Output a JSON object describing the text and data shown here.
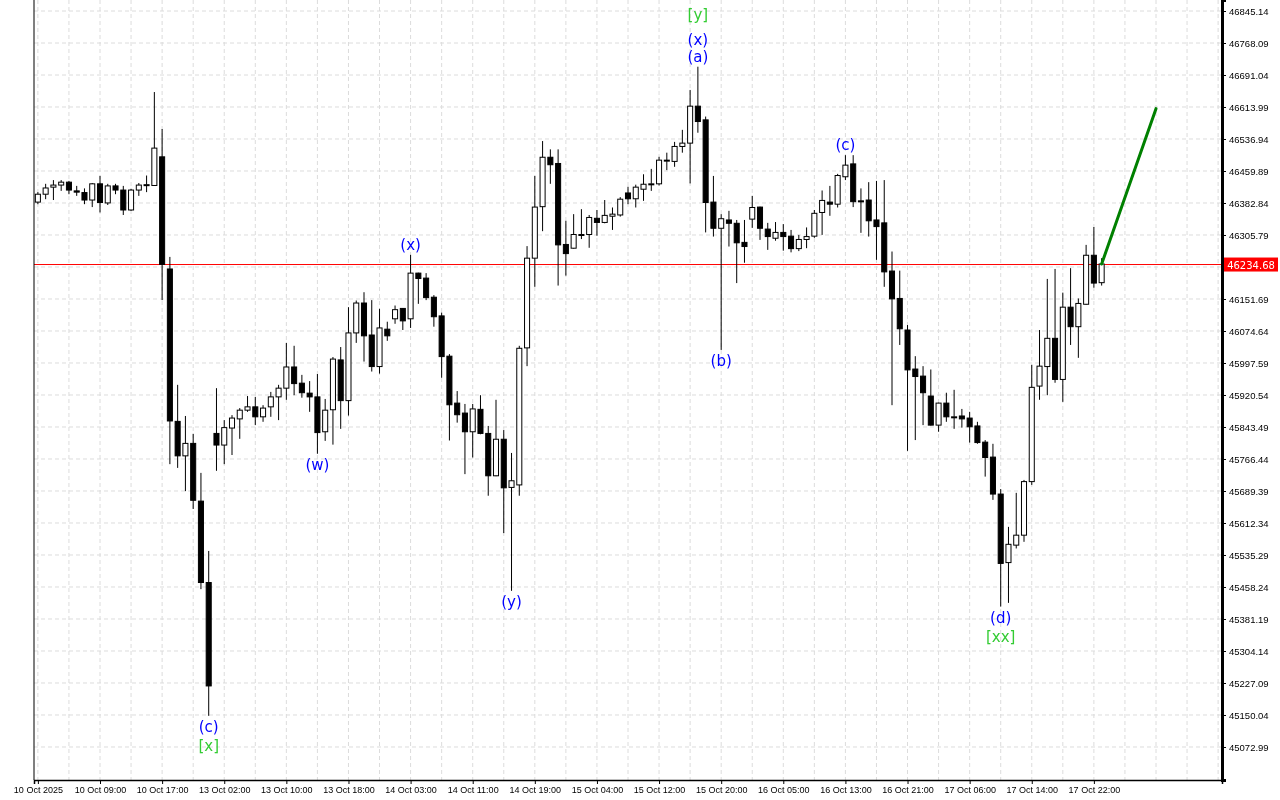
{
  "chart_data": {
    "type": "candlestick",
    "categories": [
      "10 Oct 2025",
      null,
      null,
      null,
      null,
      null,
      null,
      null,
      "10 Oct 09:00",
      null,
      null,
      null,
      null,
      null,
      null,
      null,
      "10 Oct 17:00",
      null,
      null,
      null,
      null,
      null,
      null,
      null,
      "13 Oct 02:00",
      null,
      null,
      null,
      null,
      null,
      null,
      null,
      "13 Oct 10:00",
      null,
      null,
      null,
      null,
      null,
      null,
      null,
      "13 Oct 18:00",
      null,
      null,
      null,
      null,
      null,
      null,
      null,
      "14 Oct 03:00",
      null,
      null,
      null,
      null,
      null,
      null,
      null,
      "14 Oct 11:00",
      null,
      null,
      null,
      null,
      null,
      null,
      null,
      "14 Oct 19:00",
      null,
      null,
      null,
      null,
      null,
      null,
      null,
      "15 Oct 04:00",
      null,
      null,
      null,
      null,
      null,
      null,
      null,
      "15 Oct 12:00",
      null,
      null,
      null,
      null,
      null,
      null,
      null,
      "15 Oct 20:00",
      null,
      null,
      null,
      null,
      null,
      null,
      null,
      "16 Oct 05:00",
      null,
      null,
      null,
      null,
      null,
      null,
      null,
      "16 Oct 13:00",
      null,
      null,
      null,
      null,
      null,
      null,
      null,
      "16 Oct 21:00",
      null,
      null,
      null,
      null,
      null,
      null,
      null,
      "17 Oct 06:00",
      null,
      null,
      null,
      null,
      null,
      null,
      null,
      "17 Oct 14:00",
      null,
      null,
      null,
      null,
      null,
      null,
      null,
      "17 Oct 22:00",
      null,
      null,
      null,
      null,
      null,
      null,
      null,
      null,
      null,
      null,
      null,
      null,
      null,
      null,
      null,
      null
    ],
    "ohlc": [
      [
        46385,
        46409,
        46380,
        46404
      ],
      [
        46404,
        46429,
        46392,
        46419
      ],
      [
        46421,
        46438,
        46390,
        46426
      ],
      [
        46426,
        46438,
        46412,
        46433
      ],
      [
        46433,
        46436,
        46404,
        46414
      ],
      [
        46412,
        46424,
        46400,
        46409
      ],
      [
        46408,
        46418,
        46380,
        46390
      ],
      [
        46390,
        46431,
        46373,
        46429
      ],
      [
        46429,
        46448,
        46360,
        46384
      ],
      [
        46383,
        46429,
        46378,
        46424
      ],
      [
        46424,
        46429,
        46404,
        46414
      ],
      [
        46414,
        46424,
        46354,
        46366
      ],
      [
        46366,
        46417,
        46364,
        46414
      ],
      [
        46414,
        46431,
        46400,
        46426
      ],
      [
        46426,
        46449,
        46409,
        46427
      ],
      [
        46425,
        46650,
        46424,
        46515
      ],
      [
        46494,
        46561,
        46149,
        46235
      ],
      [
        46224,
        46253,
        45754,
        45858
      ],
      [
        45857,
        45945,
        45745,
        45774
      ],
      [
        45774,
        45870,
        45689,
        45804
      ],
      [
        45804,
        45827,
        45646,
        45667
      ],
      [
        45665,
        45733,
        45453,
        45469
      ],
      [
        45469,
        45545,
        45148,
        45220
      ],
      [
        45828,
        45937,
        45738,
        45800
      ],
      [
        45800,
        45860,
        45754,
        45842
      ],
      [
        45841,
        45872,
        45776,
        45865
      ],
      [
        45863,
        45889,
        45815,
        45884
      ],
      [
        45884,
        45918,
        45880,
        45892
      ],
      [
        45892,
        45916,
        45848,
        45868
      ],
      [
        45868,
        45896,
        45856,
        45889
      ],
      [
        45892,
        45928,
        45868,
        45916
      ],
      [
        45916,
        45945,
        45860,
        45937
      ],
      [
        45937,
        46046,
        45909,
        45988
      ],
      [
        45988,
        46039,
        45920,
        45948
      ],
      [
        45949,
        45969,
        45914,
        45926
      ],
      [
        45925,
        45954,
        45880,
        45916
      ],
      [
        45916,
        45971,
        45779,
        45830
      ],
      [
        45832,
        45911,
        45810,
        45884
      ],
      [
        45885,
        46012,
        45801,
        46007
      ],
      [
        46005,
        46036,
        45839,
        45907
      ],
      [
        45907,
        46132,
        45871,
        46070
      ],
      [
        46070,
        46148,
        46046,
        46142
      ],
      [
        46142,
        46168,
        46001,
        46063
      ],
      [
        46065,
        46149,
        45977,
        45989
      ],
      [
        45989,
        46128,
        45972,
        46082
      ],
      [
        46079,
        46097,
        46051,
        46063
      ],
      [
        46104,
        46136,
        46092,
        46126
      ],
      [
        46129,
        46130,
        46077,
        46099
      ],
      [
        46104,
        46258,
        46082,
        46214
      ],
      [
        46214,
        46215,
        46140,
        46201
      ],
      [
        46202,
        46214,
        46149,
        46155
      ],
      [
        46156,
        46161,
        46085,
        46109
      ],
      [
        46111,
        46119,
        45962,
        46013
      ],
      [
        46014,
        46019,
        45811,
        45897
      ],
      [
        45901,
        45930,
        45854,
        45873
      ],
      [
        45877,
        45899,
        45730,
        45832
      ],
      [
        45832,
        45899,
        45770,
        45887
      ],
      [
        45886,
        45920,
        45826,
        45828
      ],
      [
        45828,
        45846,
        45678,
        45726
      ],
      [
        45726,
        45909,
        45725,
        45814
      ],
      [
        45814,
        45836,
        45588,
        45697
      ],
      [
        45698,
        45781,
        45449,
        45714
      ],
      [
        45704,
        46039,
        45678,
        46033
      ],
      [
        46034,
        46279,
        45990,
        46250
      ],
      [
        46250,
        46448,
        46181,
        46373
      ],
      [
        46374,
        46532,
        46315,
        46493
      ],
      [
        46493,
        46512,
        46429,
        46475
      ],
      [
        46478,
        46512,
        46184,
        46282
      ],
      [
        46283,
        46340,
        46208,
        46261
      ],
      [
        46274,
        46356,
        46273,
        46307
      ],
      [
        46307,
        46368,
        46296,
        46306
      ],
      [
        46307,
        46354,
        46275,
        46348
      ],
      [
        46346,
        46366,
        46304,
        46336
      ],
      [
        46336,
        46390,
        46334,
        46353
      ],
      [
        46351,
        46372,
        46318,
        46356
      ],
      [
        46354,
        46397,
        46350,
        46392
      ],
      [
        46407,
        46422,
        46380,
        46393
      ],
      [
        46393,
        46427,
        46372,
        46421
      ],
      [
        46416,
        46452,
        46388,
        46428
      ],
      [
        46428,
        46465,
        46412,
        46429
      ],
      [
        46429,
        46494,
        46425,
        46486
      ],
      [
        46485,
        46504,
        46462,
        46486
      ],
      [
        46483,
        46530,
        46470,
        46519
      ],
      [
        46519,
        46559,
        46504,
        46527
      ],
      [
        46527,
        46655,
        46430,
        46616
      ],
      [
        46616,
        46711,
        46552,
        46579
      ],
      [
        46583,
        46591,
        46312,
        46384
      ],
      [
        46385,
        46448,
        46302,
        46322
      ],
      [
        46322,
        46356,
        46029,
        46345
      ],
      [
        46342,
        46364,
        46278,
        46334
      ],
      [
        46334,
        46342,
        46190,
        46287
      ],
      [
        46288,
        46342,
        46239,
        46278
      ],
      [
        46344,
        46400,
        46323,
        46372
      ],
      [
        46373,
        46374,
        46294,
        46322
      ],
      [
        46320,
        46335,
        46270,
        46302
      ],
      [
        46298,
        46337,
        46292,
        46312
      ],
      [
        46312,
        46332,
        46268,
        46302
      ],
      [
        46303,
        46318,
        46264,
        46273
      ],
      [
        46273,
        46306,
        46267,
        46295
      ],
      [
        46295,
        46324,
        46274,
        46302
      ],
      [
        46303,
        46366,
        46299,
        46358
      ],
      [
        46360,
        46413,
        46306,
        46389
      ],
      [
        46385,
        46424,
        46352,
        46380
      ],
      [
        46380,
        46453,
        46372,
        46449
      ],
      [
        46446,
        46498,
        46438,
        46474
      ],
      [
        46477,
        46498,
        46373,
        46386
      ],
      [
        46388,
        46418,
        46311,
        46387
      ],
      [
        46390,
        46433,
        46302,
        46340
      ],
      [
        46342,
        46436,
        46246,
        46326
      ],
      [
        46335,
        46438,
        46181,
        46217
      ],
      [
        46219,
        46266,
        45896,
        46152
      ],
      [
        46153,
        46220,
        46041,
        46080
      ],
      [
        46077,
        46089,
        45786,
        45981
      ],
      [
        45983,
        46014,
        45812,
        45965
      ],
      [
        45966,
        45990,
        45848,
        45926
      ],
      [
        45918,
        45982,
        45847,
        45848
      ],
      [
        45848,
        45902,
        45832,
        45901
      ],
      [
        45901,
        45926,
        45856,
        45868
      ],
      [
        45868,
        45933,
        45839,
        45868
      ],
      [
        45870,
        45887,
        45842,
        45863
      ],
      [
        45865,
        45880,
        45806,
        45844
      ],
      [
        45846,
        45856,
        45803,
        45806
      ],
      [
        45807,
        45812,
        45724,
        45770
      ],
      [
        45771,
        45803,
        45668,
        45682
      ],
      [
        45682,
        45694,
        45411,
        45515
      ],
      [
        45517,
        45603,
        45420,
        45561
      ],
      [
        45559,
        45685,
        45551,
        45583
      ],
      [
        45583,
        45716,
        45567,
        45712
      ],
      [
        45712,
        45993,
        45704,
        45939
      ],
      [
        45942,
        46077,
        45909,
        45990
      ],
      [
        45989,
        46200,
        45920,
        46057
      ],
      [
        46057,
        46224,
        45950,
        45958
      ],
      [
        45958,
        46167,
        45904,
        46132
      ],
      [
        46132,
        46226,
        46041,
        46085
      ],
      [
        46085,
        46153,
        46010,
        46141
      ],
      [
        46139,
        46282,
        46138,
        46257
      ],
      [
        46257,
        46325,
        46179,
        46190
      ],
      [
        46191,
        46250,
        46184,
        46236
      ],
      null,
      null,
      null,
      null,
      null,
      null,
      null,
      null,
      null,
      null,
      null,
      null,
      null,
      null,
      null
    ],
    "series": [
      {
        "type": "line",
        "color": "#008000",
        "values": [
          null,
          null,
          null,
          null,
          null,
          null,
          null,
          null,
          null,
          null,
          null,
          null,
          null,
          null,
          null,
          null,
          null,
          null,
          null,
          null,
          null,
          null,
          null,
          null,
          null,
          null,
          null,
          null,
          null,
          null,
          null,
          null,
          null,
          null,
          null,
          null,
          null,
          null,
          null,
          null,
          null,
          null,
          null,
          null,
          null,
          null,
          null,
          null,
          null,
          null,
          null,
          null,
          null,
          null,
          null,
          null,
          null,
          null,
          null,
          null,
          null,
          null,
          null,
          null,
          null,
          null,
          null,
          null,
          null,
          null,
          null,
          null,
          null,
          null,
          null,
          null,
          null,
          null,
          null,
          null,
          null,
          null,
          null,
          null,
          null,
          null,
          null,
          null,
          null,
          null,
          null,
          null,
          null,
          null,
          null,
          null,
          null,
          null,
          null,
          null,
          null,
          null,
          null,
          null,
          null,
          null,
          null,
          null,
          null,
          null,
          null,
          null,
          null,
          null,
          null,
          null,
          null,
          null,
          null,
          null,
          null,
          null,
          null,
          null,
          null,
          null,
          null,
          null,
          null,
          null,
          null,
          null,
          null,
          null,
          null,
          null,
          null,
          46236,
          null,
          null,
          null,
          null,
          null,
          null,
          46610,
          null,
          null,
          null,
          null,
          null,
          null,
          null,
          null
        ]
      }
    ],
    "ylim": [
      44993.5,
      46871.63
    ],
    "yticks": [
      46845.14,
      46768.09,
      46691.04,
      46613.99,
      46536.94,
      46459.89,
      46382.84,
      46305.79,
      {
        "value": 46228.74,
        "label": null
      },
      46151.69,
      46074.64,
      45997.59,
      45920.54,
      45843.49,
      45766.44,
      45689.39,
      45612.34,
      45535.29,
      45458.24,
      45381.19,
      45304.14,
      45227.09,
      45150.04,
      45072.99
    ],
    "ref_lines": [
      {
        "axis": "y",
        "value": 46234.68,
        "label": "46234.68",
        "color": "#ff0000"
      }
    ],
    "annotations": [
      {
        "text": "(c)",
        "y": 45148
      },
      {
        "text": "[x]",
        "y": 45148
      },
      {
        "text": "(w)",
        "y": 45779
      },
      {
        "text": "(x)",
        "y": 46258
      },
      {
        "text": "(y)",
        "y": 45449
      },
      {
        "text": "(a)",
        "y": 46711
      },
      {
        "text": "(x)",
        "y": 46711
      },
      {
        "text": "[y]",
        "y": 46711
      },
      {
        "text": "(b)",
        "y": 46029
      },
      {
        "text": "(c)",
        "y": 46498
      },
      {
        "text": "(d)",
        "y": 45411
      },
      {
        "text": "[xx]",
        "y": 45411
      }
    ],
    "grid": true
  }
}
